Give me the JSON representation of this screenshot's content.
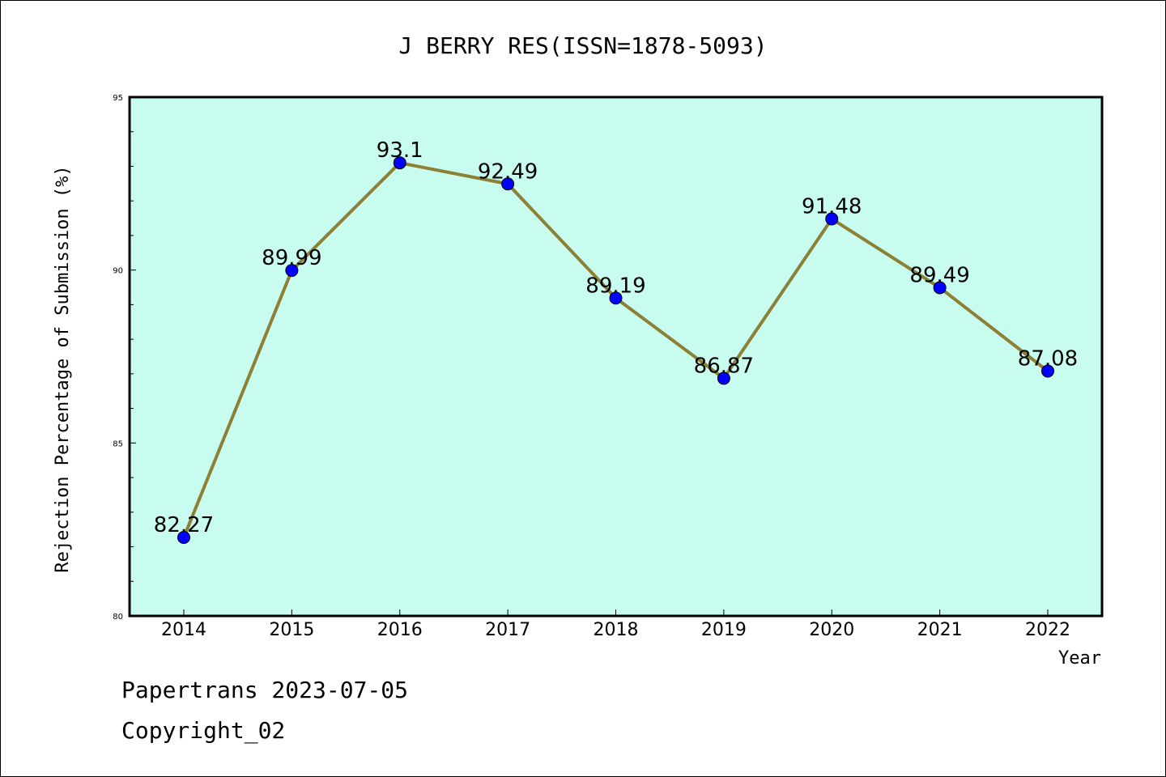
{
  "chart_data": {
    "type": "line",
    "title": "J BERRY RES(ISSN=1878-5093)",
    "xlabel": "Year",
    "ylabel": "Rejection Percentage of Submission (%)",
    "categories": [
      "2014",
      "2015",
      "2016",
      "2017",
      "2018",
      "2019",
      "2020",
      "2021",
      "2022"
    ],
    "values": [
      82.27,
      89.99,
      93.1,
      92.49,
      89.19,
      86.87,
      91.48,
      89.49,
      87.08
    ],
    "data_labels": [
      "82.27",
      "89.99",
      "93.1",
      "92.49",
      "89.19",
      "86.87",
      "91.48",
      "89.49",
      "87.08"
    ],
    "ylim": [
      80,
      95
    ],
    "yticks": [
      "80",
      "85",
      "90",
      "95"
    ],
    "grid": false,
    "legend": "none",
    "colors": {
      "plot_background": "#c8fcee",
      "line": "#8b8036",
      "marker": "#0000ff"
    }
  },
  "footer": {
    "line1": "Papertrans 2023-07-05",
    "line2": "Copyright_02"
  }
}
